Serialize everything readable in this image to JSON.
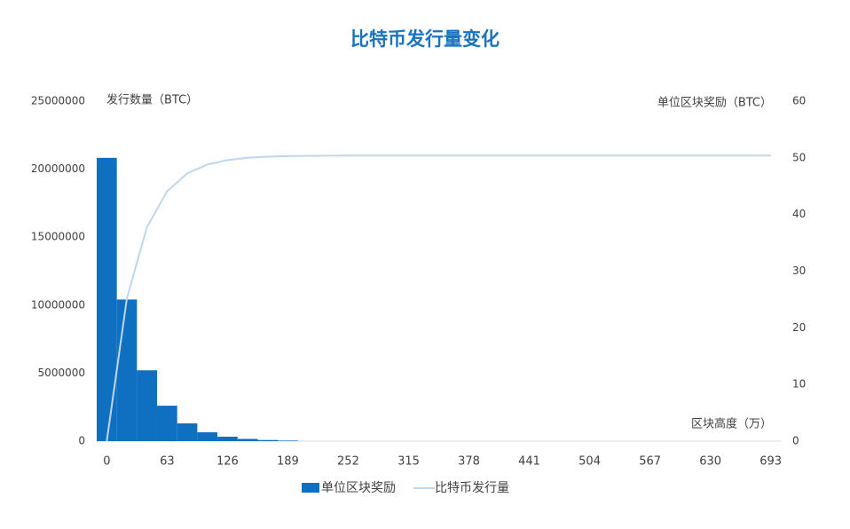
{
  "chart_data": {
    "type": "bar",
    "title": "比特币发行量变化",
    "y_label": "发行数量（BTC）",
    "y2_label": "单位区块奖励（BTC）",
    "x_label": "区块高度（万）",
    "x": [
      0,
      21,
      42,
      63,
      84,
      105,
      126,
      147,
      168,
      189,
      210,
      231,
      252,
      273,
      294,
      315,
      336,
      357,
      378,
      399,
      420,
      441,
      462,
      483,
      504,
      525,
      546,
      567,
      588,
      609,
      630,
      651,
      672,
      693
    ],
    "xlim": [
      -10.5,
      703.5
    ],
    "xticks": [
      0,
      63,
      126,
      189,
      252,
      315,
      378,
      441,
      504,
      567,
      630,
      693
    ],
    "ylim": [
      0,
      25000000
    ],
    "yticks": [
      0,
      5000000,
      10000000,
      15000000,
      20000000,
      25000000
    ],
    "y2lim": [
      0,
      60
    ],
    "y2ticks": [
      0,
      10,
      20,
      30,
      40,
      50,
      60
    ],
    "bar_width": 21,
    "series": [
      {
        "name": "单位区块奖励",
        "type": "bar",
        "axis": "y2",
        "color": "#0f6fc0",
        "values": [
          50,
          25,
          12.5,
          6.25,
          3.13,
          1.56,
          0.78,
          0.39,
          0.2,
          0.1,
          0,
          0,
          0,
          0,
          0,
          0,
          0,
          0,
          0,
          0,
          0,
          0,
          0,
          0,
          0,
          0,
          0,
          0,
          0,
          0,
          0,
          0,
          0,
          0
        ]
      },
      {
        "name": "比特币发行量",
        "type": "line",
        "axis": "y",
        "color": "#bdd7ee",
        "values": [
          0,
          10500000,
          15750000,
          18375000,
          19690000,
          20340000,
          20670000,
          20840000,
          20920000,
          20960000,
          20980000,
          20990000,
          21000000,
          21000000,
          21000000,
          21000000,
          21000000,
          21000000,
          21000000,
          21000000,
          21000000,
          21000000,
          21000000,
          21000000,
          21000000,
          21000000,
          21000000,
          21000000,
          21000000,
          21000000,
          21000000,
          21000000,
          21000000,
          21000000
        ]
      }
    ]
  }
}
